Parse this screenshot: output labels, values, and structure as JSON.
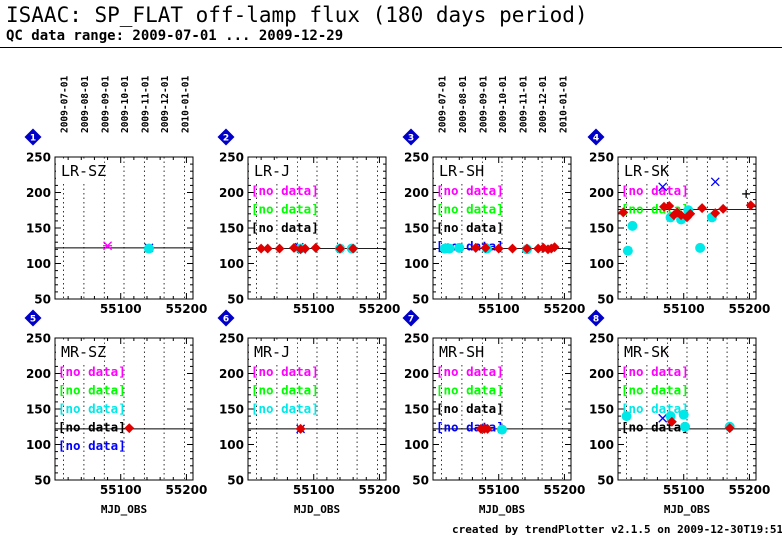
{
  "header": {
    "title": "ISAAC: SP_FLAT off-lamp flux (180 days period)",
    "subtitle": "QC data range: 2009-07-01 ... 2009-12-29"
  },
  "footer": {
    "credit": "created by trendPlotter v2.1.5 on 2009-12-30T19:51:52"
  },
  "colors": {
    "red": "#e00000",
    "cyan": "#00e8e8",
    "magenta": "#ff00ff",
    "green": "#00ff00",
    "blue": "#0000ff",
    "black": "#000000",
    "marker": "#0000c8"
  },
  "top_date_ticks": {
    "labels": [
      "2009-07-01",
      "2009-08-01",
      "2009-09-01",
      "2009-10-01",
      "2009-11-01",
      "2009-12-01",
      "2010-01-01"
    ],
    "mjd": [
      55013,
      55044,
      55075,
      55105,
      55136,
      55166,
      55197
    ]
  },
  "chart_data": [
    {
      "type": "scatter",
      "index": "1",
      "setup": "LR-SZ",
      "xlabel": "",
      "xlim": [
        55000,
        55210
      ],
      "ylim": [
        50,
        250
      ],
      "yticks": [
        "50",
        "100",
        "150",
        "200",
        "250"
      ],
      "xticks": [
        "55100",
        "55200"
      ],
      "reference_line": 122,
      "top_dates": true,
      "no_data_labels": [],
      "series": [
        {
          "marker": "star",
          "color": "magenta",
          "points": [
            [
              55080,
              125
            ]
          ]
        },
        {
          "marker": "x",
          "color": "blue",
          "points": [
            [
              55143,
              122
            ]
          ]
        },
        {
          "marker": "plus",
          "color": "black",
          "points": [
            [
              55143,
              122
            ]
          ]
        },
        {
          "marker": "circle",
          "color": "cyan",
          "points": [
            [
              55143,
              121
            ]
          ]
        }
      ]
    },
    {
      "type": "scatter",
      "index": "2",
      "setup": "LR-J",
      "xlabel": "",
      "xlim": [
        55000,
        55210
      ],
      "ylim": [
        50,
        250
      ],
      "yticks": [
        "50",
        "100",
        "150",
        "200",
        "250"
      ],
      "xticks": [
        "55100",
        "55200"
      ],
      "reference_line": 121,
      "top_dates": false,
      "no_data_labels": [
        {
          "text": "[no data]",
          "color": "magenta"
        },
        {
          "text": "[no data]",
          "color": "green"
        },
        {
          "text": "[no data]",
          "color": "black"
        }
      ],
      "series": [
        {
          "marker": "x",
          "color": "blue",
          "points": [
            [
              55078,
              123
            ],
            [
              55082,
              120
            ]
          ]
        },
        {
          "marker": "circle",
          "color": "cyan",
          "points": [
            [
              55080,
              121
            ],
            [
              55140,
              121
            ],
            [
              55158,
              121
            ]
          ]
        },
        {
          "marker": "diamond",
          "color": "red",
          "points": [
            [
              55020,
              121
            ],
            [
              55030,
              121
            ],
            [
              55048,
              121
            ],
            [
              55070,
              122
            ],
            [
              55080,
              120
            ],
            [
              55087,
              121
            ],
            [
              55103,
              122
            ],
            [
              55140,
              121
            ],
            [
              55160,
              121
            ]
          ]
        }
      ]
    },
    {
      "type": "scatter",
      "index": "3",
      "setup": "LR-SH",
      "xlabel": "",
      "xlim": [
        55000,
        55210
      ],
      "ylim": [
        50,
        250
      ],
      "yticks": [
        "50",
        "100",
        "150",
        "200",
        "250"
      ],
      "xticks": [
        "55100",
        "55200"
      ],
      "reference_line": 121,
      "top_dates": true,
      "no_data_labels": [
        {
          "text": "[no data]",
          "color": "magenta"
        },
        {
          "text": "[no data]",
          "color": "green"
        },
        {
          "text": "[no data]",
          "color": "black"
        },
        {
          "text": "[no data]",
          "color": "blue"
        }
      ],
      "series": [
        {
          "marker": "circle",
          "color": "cyan",
          "points": [
            [
              55018,
              121
            ],
            [
              55025,
              121
            ],
            [
              55040,
              122
            ],
            [
              55082,
              121
            ],
            [
              55143,
              120
            ]
          ]
        },
        {
          "marker": "diamond",
          "color": "red",
          "points": [
            [
              55065,
              122
            ],
            [
              55080,
              122
            ],
            [
              55100,
              121
            ],
            [
              55121,
              121
            ],
            [
              55143,
              121
            ],
            [
              55160,
              121
            ],
            [
              55168,
              122
            ],
            [
              55175,
              120
            ],
            [
              55180,
              121
            ],
            [
              55185,
              123
            ]
          ]
        }
      ]
    },
    {
      "type": "scatter",
      "index": "4",
      "setup": "LR-SK",
      "xlabel": "",
      "xlim": [
        55000,
        55210
      ],
      "ylim": [
        50,
        250
      ],
      "yticks": [
        "50",
        "100",
        "150",
        "200",
        "250"
      ],
      "xticks": [
        "55100",
        "55200"
      ],
      "reference_line": 176,
      "top_dates": false,
      "no_data_labels": [
        {
          "text": "[no data]",
          "color": "magenta"
        },
        {
          "text": "[no data]",
          "color": "green"
        }
      ],
      "series": [
        {
          "marker": "x",
          "color": "blue",
          "points": [
            [
              55068,
              208
            ],
            [
              55148,
              215
            ]
          ]
        },
        {
          "marker": "plus",
          "color": "black",
          "points": [
            [
              55195,
              198
            ]
          ]
        },
        {
          "marker": "circle",
          "color": "cyan",
          "points": [
            [
              55015,
              118
            ],
            [
              55022,
              153
            ],
            [
              55080,
              165
            ],
            [
              55096,
              162
            ],
            [
              55107,
              175
            ],
            [
              55125,
              122
            ],
            [
              55143,
              165
            ]
          ]
        },
        {
          "marker": "diamond",
          "color": "red",
          "points": [
            [
              55008,
              172
            ],
            [
              55070,
              180
            ],
            [
              55078,
              181
            ],
            [
              55085,
              168
            ],
            [
              55090,
              172
            ],
            [
              55096,
              168
            ],
            [
              55105,
              165
            ],
            [
              55110,
              170
            ],
            [
              55128,
              178
            ],
            [
              55148,
              171
            ],
            [
              55160,
              177
            ],
            [
              55202,
              182
            ]
          ]
        }
      ]
    },
    {
      "type": "scatter",
      "index": "5",
      "setup": "MR-SZ",
      "xlabel": "MJD_OBS",
      "xlim": [
        55000,
        55210
      ],
      "ylim": [
        50,
        250
      ],
      "yticks": [
        "50",
        "100",
        "150",
        "200",
        "250"
      ],
      "xticks": [
        "55100",
        "55200"
      ],
      "reference_line": 122,
      "top_dates": false,
      "no_data_labels": [
        {
          "text": "[no data]",
          "color": "magenta"
        },
        {
          "text": "[no data]",
          "color": "green"
        },
        {
          "text": "[no data]",
          "color": "cyan"
        },
        {
          "text": "[no data]",
          "color": "black"
        },
        {
          "text": "[no data]",
          "color": "blue"
        }
      ],
      "series": [
        {
          "marker": "diamond",
          "color": "red",
          "points": [
            [
              55113,
              123
            ]
          ]
        }
      ]
    },
    {
      "type": "scatter",
      "index": "6",
      "setup": "MR-J",
      "xlabel": "MJD_OBS",
      "xlim": [
        55000,
        55210
      ],
      "ylim": [
        50,
        250
      ],
      "yticks": [
        "50",
        "100",
        "150",
        "200",
        "250"
      ],
      "xticks": [
        "55100",
        "55200"
      ],
      "reference_line": 122,
      "top_dates": false,
      "no_data_labels": [
        {
          "text": "[no data]",
          "color": "magenta"
        },
        {
          "text": "[no data]",
          "color": "green"
        },
        {
          "text": "[no data]",
          "color": "cyan"
        }
      ],
      "series": [
        {
          "marker": "x",
          "color": "blue",
          "points": [
            [
              55080,
              122
            ]
          ]
        },
        {
          "marker": "diamond",
          "color": "red",
          "points": [
            [
              55080,
              122
            ]
          ]
        }
      ]
    },
    {
      "type": "scatter",
      "index": "7",
      "setup": "MR-SH",
      "xlabel": "MJD_OBS",
      "xlim": [
        55000,
        55210
      ],
      "ylim": [
        50,
        250
      ],
      "yticks": [
        "50",
        "100",
        "150",
        "200",
        "250"
      ],
      "xticks": [
        "55100",
        "55200"
      ],
      "reference_line": 122,
      "top_dates": false,
      "no_data_labels": [
        {
          "text": "[no data]",
          "color": "magenta"
        },
        {
          "text": "[no data]",
          "color": "green"
        },
        {
          "text": "[no data]",
          "color": "black"
        },
        {
          "text": "[no data]",
          "color": "blue"
        }
      ],
      "series": [
        {
          "marker": "circle",
          "color": "cyan",
          "points": [
            [
              55105,
              121
            ]
          ]
        },
        {
          "marker": "diamond",
          "color": "red",
          "points": [
            [
              55073,
              122
            ],
            [
              55078,
              122
            ],
            [
              55083,
              122
            ]
          ]
        }
      ]
    },
    {
      "type": "scatter",
      "index": "8",
      "setup": "MR-SK",
      "xlabel": "MJD_OBS",
      "xlim": [
        55000,
        55210
      ],
      "ylim": [
        50,
        250
      ],
      "yticks": [
        "50",
        "100",
        "150",
        "200",
        "250"
      ],
      "xticks": [
        "55100",
        "55200"
      ],
      "reference_line": 122,
      "top_dates": false,
      "no_data_labels": [
        {
          "text": "[no data]",
          "color": "magenta"
        },
        {
          "text": "[no data]",
          "color": "green"
        },
        {
          "text": "[no data]",
          "color": "cyan"
        },
        {
          "text": "[no data]",
          "color": "black"
        }
      ],
      "series": [
        {
          "marker": "x",
          "color": "blue",
          "points": [
            [
              55068,
              137
            ]
          ]
        },
        {
          "marker": "circle",
          "color": "cyan",
          "points": [
            [
              55013,
              140
            ],
            [
              55080,
              140
            ],
            [
              55100,
              142
            ],
            [
              55102,
              125
            ],
            [
              55170,
              125
            ]
          ]
        },
        {
          "marker": "diamond",
          "color": "red",
          "points": [
            [
              55082,
              132
            ],
            [
              55170,
              123
            ]
          ]
        }
      ]
    }
  ]
}
